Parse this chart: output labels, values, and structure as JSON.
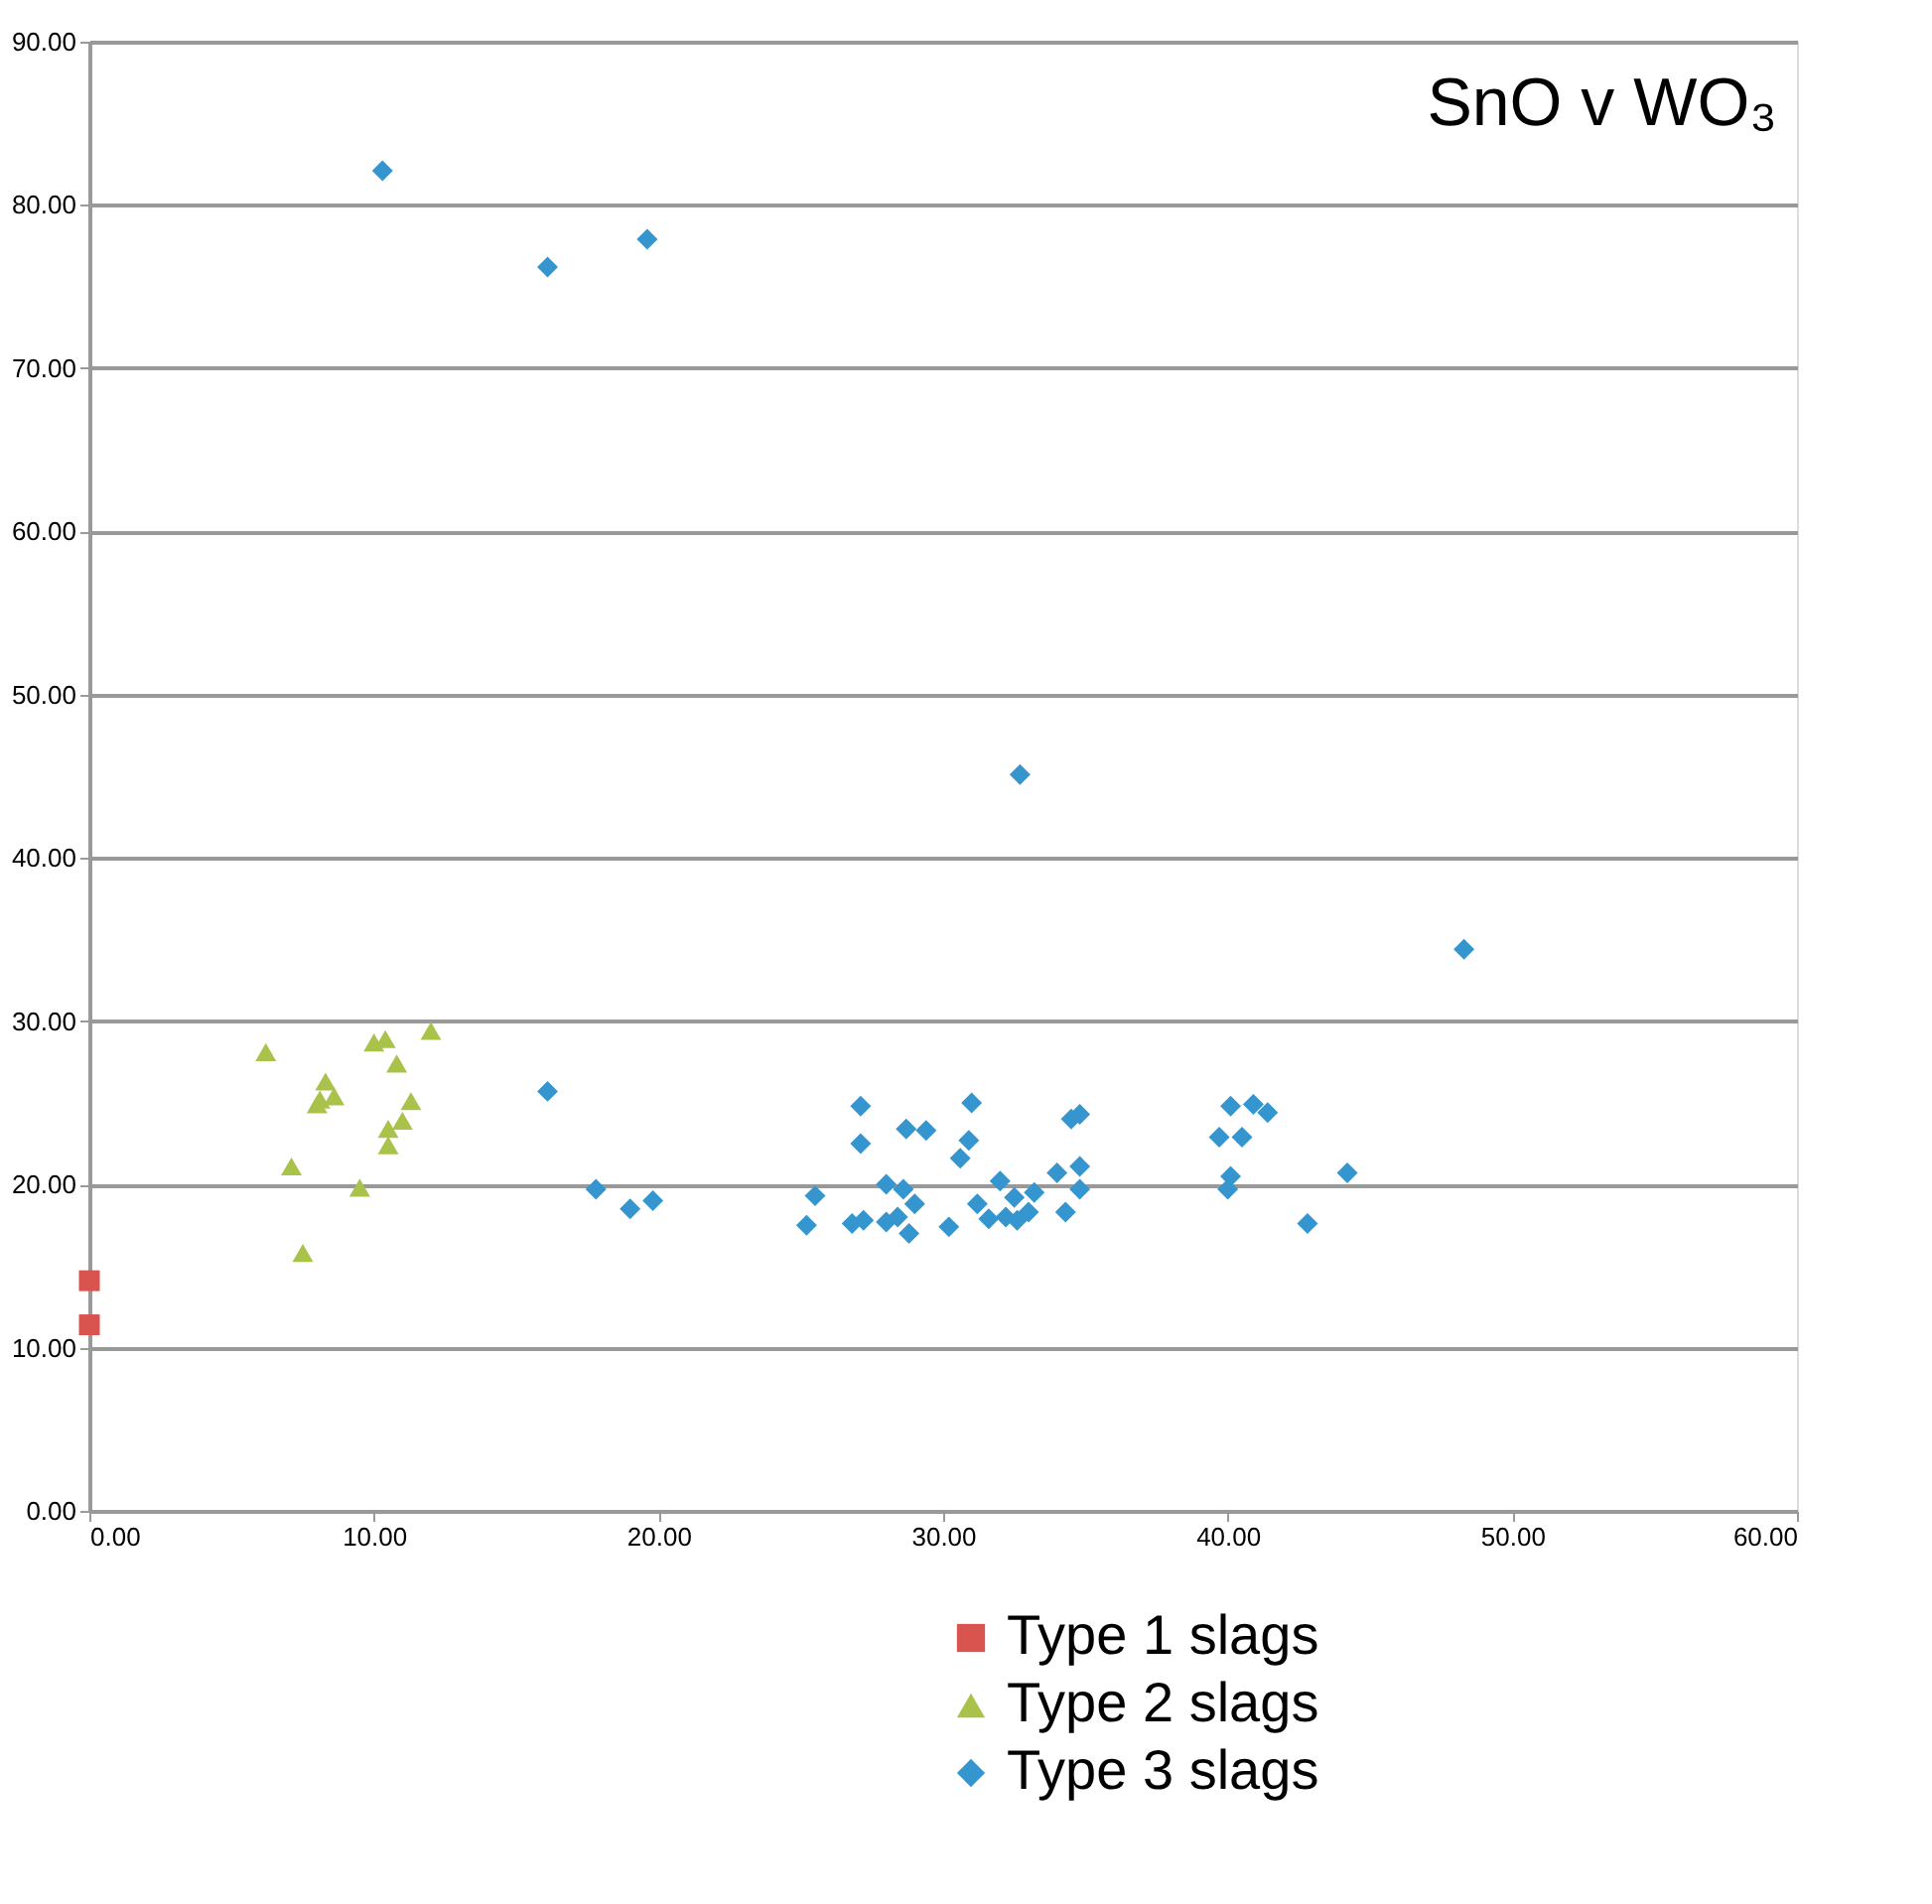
{
  "chart_data": {
    "type": "scatter",
    "title": "SnO v WO₃",
    "legend": "bottom",
    "grid": "y",
    "xlim": [
      0,
      60
    ],
    "xticks": [
      {
        "value": 0,
        "label": "0.00"
      },
      {
        "value": 10,
        "label": "10.00"
      },
      {
        "value": 20,
        "label": "20.00"
      },
      {
        "value": 30,
        "label": "30.00"
      },
      {
        "value": 40,
        "label": "40.00"
      },
      {
        "value": 50,
        "label": "50.00"
      },
      {
        "value": 60,
        "label": "60.00"
      }
    ],
    "ylim": [
      0,
      90
    ],
    "yticks": [
      {
        "value": 0,
        "label": "0.00"
      },
      {
        "value": 10,
        "label": "10.00"
      },
      {
        "value": 20,
        "label": "20.00"
      },
      {
        "value": 30,
        "label": "30.00"
      },
      {
        "value": 40,
        "label": "40.00"
      },
      {
        "value": 50,
        "label": "50.00"
      },
      {
        "value": 60,
        "label": "60.00"
      },
      {
        "value": 70,
        "label": "70.00"
      },
      {
        "value": 80,
        "label": "80.00"
      },
      {
        "value": 90,
        "label": "90.00"
      }
    ],
    "series": [
      {
        "name": "Type 1 slags",
        "color": "#d9534f",
        "marker": "square",
        "x": [
          0,
          0
        ],
        "values": [
          14.1,
          11.4
        ]
      },
      {
        "name": "Type 2 slags",
        "color": "#a9c24a",
        "marker": "triangle",
        "x": [
          6.2,
          7.1,
          7.5,
          8.0,
          8.3,
          8.6,
          9.5,
          10.0,
          10.4,
          10.5,
          10.5,
          10.8,
          11.0,
          11.3,
          12.0,
          8.1
        ],
        "values": [
          28.1,
          21.1,
          15.8,
          24.9,
          26.3,
          25.4,
          19.8,
          28.7,
          28.9,
          23.4,
          22.4,
          27.4,
          23.9,
          25.1,
          29.4,
          25.2
        ]
      },
      {
        "name": "Type 3 slags",
        "color": "#3595cf",
        "marker": "diamond",
        "x": [
          10.3,
          16.1,
          19.6,
          32.7,
          48.3,
          16.1,
          17.8,
          19.0,
          19.8,
          25.2,
          25.5,
          26.8,
          27.2,
          27.1,
          27.1,
          28.0,
          28.0,
          28.4,
          28.7,
          28.6,
          28.8,
          29.0,
          29.4,
          30.2,
          30.6,
          30.9,
          31.0,
          31.2,
          31.6,
          32.0,
          32.2,
          32.5,
          32.6,
          33.0,
          33.2,
          34.0,
          34.3,
          34.5,
          34.8,
          34.8,
          34.8,
          39.7,
          40.0,
          40.1,
          40.1,
          40.5,
          40.9,
          41.4,
          42.8,
          44.2
        ],
        "values": [
          82.1,
          76.2,
          77.9,
          45.1,
          34.4,
          25.7,
          19.7,
          18.5,
          19.0,
          17.5,
          19.3,
          17.6,
          17.8,
          24.8,
          22.5,
          20.0,
          17.7,
          18.0,
          23.4,
          19.7,
          17.0,
          18.8,
          23.3,
          17.4,
          21.6,
          22.7,
          25.0,
          18.8,
          17.9,
          20.2,
          18.0,
          19.2,
          17.8,
          18.3,
          19.5,
          20.7,
          18.3,
          24.0,
          24.3,
          21.1,
          19.7,
          22.9,
          19.7,
          20.5,
          24.8,
          22.9,
          24.9,
          24.4,
          17.6,
          20.7
        ]
      }
    ]
  }
}
